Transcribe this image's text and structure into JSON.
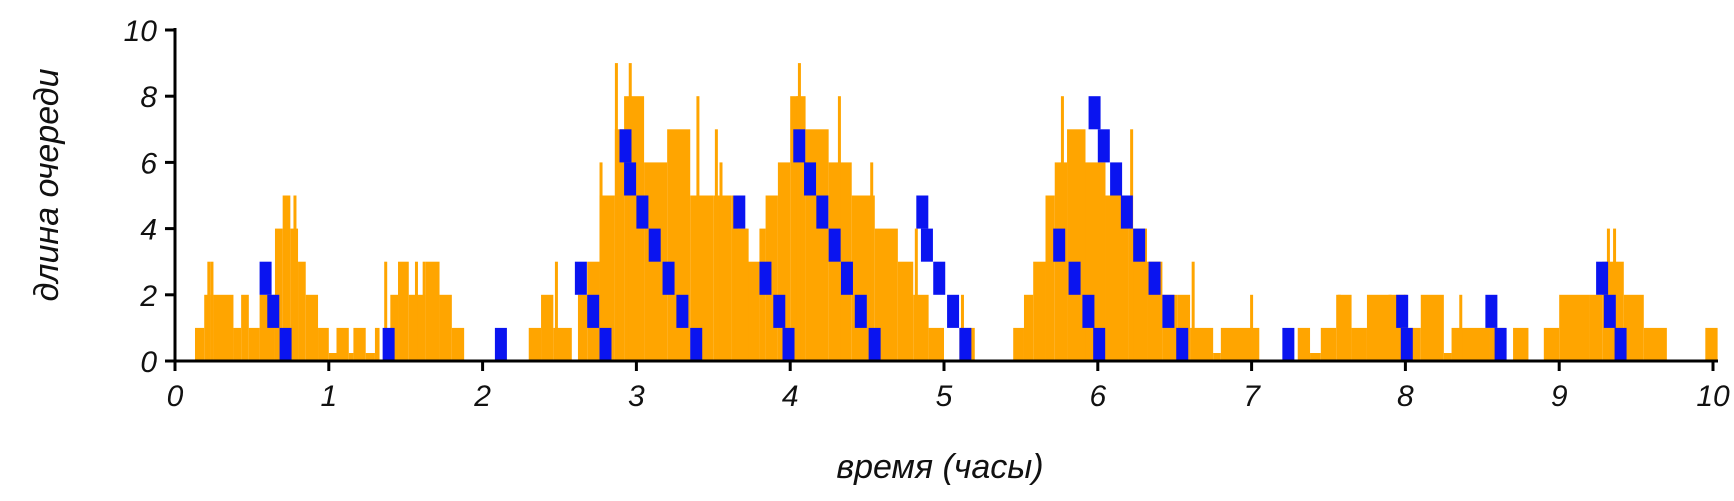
{
  "chart_data": {
    "type": "area",
    "title": "",
    "xlabel": "время (часы)",
    "ylabel": "длина очереди",
    "xlim": [
      0,
      10
    ],
    "ylim": [
      0,
      10
    ],
    "xticks": [
      "0",
      "1",
      "2",
      "3",
      "4",
      "5",
      "6",
      "7",
      "8",
      "9",
      "10"
    ],
    "yticks": [
      "0",
      "2",
      "4",
      "6",
      "8",
      "10"
    ],
    "grid": false,
    "legend": "none",
    "colors": {
      "queue_fill": "#FFA500",
      "arrival_marks": "#0A14F0",
      "axis": "#000000"
    },
    "series": [
      {
        "color": "#FFA500",
        "step_segments": [
          [
            0.13,
            0.19,
            1
          ],
          [
            0.19,
            0.23,
            2
          ],
          [
            0.23,
            0.25,
            3
          ],
          [
            0.25,
            0.38,
            2
          ],
          [
            0.38,
            0.43,
            1
          ],
          [
            0.43,
            0.48,
            2
          ],
          [
            0.48,
            0.55,
            1
          ],
          [
            0.55,
            0.65,
            2
          ],
          [
            0.65,
            0.7,
            4
          ],
          [
            0.7,
            0.75,
            5
          ],
          [
            0.75,
            0.8,
            4
          ],
          [
            0.8,
            0.85,
            3
          ],
          [
            0.85,
            0.93,
            2
          ],
          [
            0.93,
            1.0,
            1
          ],
          [
            1.0,
            1.05,
            0
          ],
          [
            1.05,
            1.13,
            1
          ],
          [
            1.13,
            1.16,
            0
          ],
          [
            1.16,
            1.24,
            1
          ],
          [
            1.24,
            1.3,
            0
          ],
          [
            1.3,
            1.33,
            1
          ],
          [
            1.4,
            1.45,
            2
          ],
          [
            1.45,
            1.52,
            3
          ],
          [
            1.52,
            1.63,
            2
          ],
          [
            1.63,
            1.72,
            3
          ],
          [
            1.72,
            1.8,
            2
          ],
          [
            1.8,
            1.88,
            1
          ],
          [
            2.3,
            2.38,
            1
          ],
          [
            2.38,
            2.46,
            2
          ],
          [
            2.46,
            2.58,
            1
          ],
          [
            2.62,
            2.68,
            2
          ],
          [
            2.68,
            2.76,
            3
          ],
          [
            2.76,
            2.86,
            5
          ],
          [
            2.86,
            2.92,
            7
          ],
          [
            2.92,
            3.05,
            8
          ],
          [
            3.05,
            3.2,
            6
          ],
          [
            3.2,
            3.35,
            7
          ],
          [
            3.35,
            3.5,
            5
          ],
          [
            3.5,
            3.62,
            5
          ],
          [
            3.62,
            3.72,
            4
          ],
          [
            3.72,
            3.8,
            3
          ],
          [
            3.8,
            3.84,
            4
          ],
          [
            3.84,
            3.92,
            5
          ],
          [
            3.92,
            4.0,
            6
          ],
          [
            4.0,
            4.1,
            8
          ],
          [
            4.1,
            4.25,
            7
          ],
          [
            4.25,
            4.4,
            6
          ],
          [
            4.4,
            4.55,
            5
          ],
          [
            4.55,
            4.7,
            4
          ],
          [
            4.7,
            4.8,
            3
          ],
          [
            4.8,
            4.9,
            2
          ],
          [
            4.9,
            5.0,
            1
          ],
          [
            5.1,
            5.2,
            1
          ],
          [
            5.45,
            5.52,
            1
          ],
          [
            5.52,
            5.58,
            2
          ],
          [
            5.58,
            5.66,
            3
          ],
          [
            5.66,
            5.72,
            5
          ],
          [
            5.72,
            5.8,
            6
          ],
          [
            5.8,
            5.92,
            7
          ],
          [
            5.92,
            6.05,
            6
          ],
          [
            6.05,
            6.2,
            5
          ],
          [
            6.2,
            6.32,
            4
          ],
          [
            6.32,
            6.42,
            3
          ],
          [
            6.42,
            6.52,
            2
          ],
          [
            6.52,
            6.6,
            2
          ],
          [
            6.6,
            6.75,
            1
          ],
          [
            6.75,
            6.8,
            0
          ],
          [
            6.8,
            7.05,
            1
          ],
          [
            7.3,
            7.38,
            1
          ],
          [
            7.38,
            7.45,
            0
          ],
          [
            7.45,
            7.55,
            1
          ],
          [
            7.55,
            7.65,
            2
          ],
          [
            7.65,
            7.75,
            1
          ],
          [
            7.75,
            8.0,
            2
          ],
          [
            8.0,
            8.1,
            1
          ],
          [
            8.1,
            8.25,
            2
          ],
          [
            8.25,
            8.3,
            0
          ],
          [
            8.3,
            8.55,
            1
          ],
          [
            8.55,
            8.65,
            1
          ],
          [
            8.7,
            8.8,
            1
          ],
          [
            8.9,
            9.0,
            1
          ],
          [
            9.0,
            9.2,
            2
          ],
          [
            9.2,
            9.28,
            2
          ],
          [
            9.28,
            9.42,
            3
          ],
          [
            9.42,
            9.55,
            2
          ],
          [
            9.55,
            9.7,
            1
          ],
          [
            9.95,
            10.03,
            1
          ]
        ],
        "spikes": [
          [
            0.22,
            3
          ],
          [
            0.72,
            5
          ],
          [
            0.78,
            5
          ],
          [
            1.37,
            3
          ],
          [
            1.57,
            3
          ],
          [
            1.62,
            3
          ],
          [
            2.48,
            3
          ],
          [
            2.77,
            6
          ],
          [
            2.87,
            9
          ],
          [
            2.96,
            9
          ],
          [
            3.4,
            8
          ],
          [
            3.52,
            7
          ],
          [
            3.55,
            6
          ],
          [
            3.63,
            5
          ],
          [
            3.65,
            5
          ],
          [
            3.72,
            4
          ],
          [
            4.05,
            8
          ],
          [
            4.06,
            9
          ],
          [
            4.32,
            8
          ],
          [
            4.53,
            6
          ],
          [
            4.82,
            4
          ],
          [
            5.12,
            2
          ],
          [
            5.77,
            8
          ],
          [
            6.22,
            7
          ],
          [
            6.62,
            3
          ],
          [
            7.0,
            2
          ],
          [
            7.57,
            2
          ],
          [
            7.9,
            2
          ],
          [
            8.0,
            2
          ],
          [
            8.36,
            2
          ],
          [
            9.32,
            4
          ],
          [
            9.36,
            4
          ]
        ]
      },
      {
        "color": "#0A14F0",
        "arrival_marks": [
          [
            0.55,
            3
          ],
          [
            0.6,
            2
          ],
          [
            0.68,
            1
          ],
          [
            1.35,
            1
          ],
          [
            2.08,
            1
          ],
          [
            2.6,
            3
          ],
          [
            2.68,
            2
          ],
          [
            2.76,
            1
          ],
          [
            2.89,
            7
          ],
          [
            2.92,
            6
          ],
          [
            3.0,
            5
          ],
          [
            3.08,
            4
          ],
          [
            3.17,
            3
          ],
          [
            3.26,
            2
          ],
          [
            3.35,
            1
          ],
          [
            3.63,
            5
          ],
          [
            3.8,
            3
          ],
          [
            3.89,
            2
          ],
          [
            3.95,
            1
          ],
          [
            4.02,
            7
          ],
          [
            4.09,
            6
          ],
          [
            4.17,
            5
          ],
          [
            4.25,
            4
          ],
          [
            4.33,
            3
          ],
          [
            4.42,
            2
          ],
          [
            4.51,
            1
          ],
          [
            4.82,
            5
          ],
          [
            4.85,
            4
          ],
          [
            4.93,
            3
          ],
          [
            5.02,
            2
          ],
          [
            5.1,
            1
          ],
          [
            5.71,
            4
          ],
          [
            5.81,
            3
          ],
          [
            5.9,
            2
          ],
          [
            5.97,
            1
          ],
          [
            5.94,
            8
          ],
          [
            6.0,
            7
          ],
          [
            6.08,
            6
          ],
          [
            6.15,
            5
          ],
          [
            6.23,
            4
          ],
          [
            6.33,
            3
          ],
          [
            6.42,
            2
          ],
          [
            6.51,
            1
          ],
          [
            7.2,
            1
          ],
          [
            7.94,
            2
          ],
          [
            7.97,
            1
          ],
          [
            8.52,
            2
          ],
          [
            8.58,
            1
          ],
          [
            9.24,
            3
          ],
          [
            9.29,
            2
          ],
          [
            9.36,
            1
          ]
        ]
      }
    ]
  }
}
